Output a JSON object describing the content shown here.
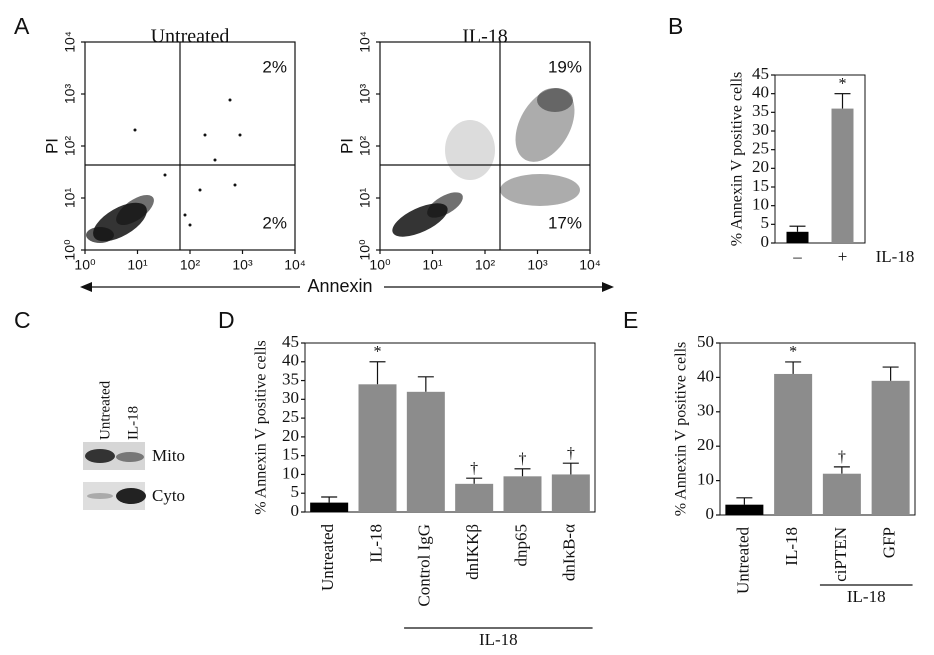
{
  "chart_data": [
    {
      "type": "flow",
      "panel": "A",
      "title": "Untreated",
      "xlabel": "Annexin",
      "ylabel": "PI",
      "log": true,
      "xlim": [
        1,
        10000
      ],
      "ylim": [
        1,
        10000
      ],
      "xticks": [
        {
          "value": 1,
          "label": "10⁰"
        },
        {
          "value": 10,
          "label": "10¹"
        },
        {
          "value": 100,
          "label": "10²"
        },
        {
          "value": 1000,
          "label": "10³"
        },
        {
          "value": 10000,
          "label": "10⁴"
        }
      ],
      "yticks": [
        {
          "value": 1,
          "label": "10⁰"
        },
        {
          "value": 10,
          "label": "10¹"
        },
        {
          "value": 100,
          "label": "10²"
        },
        {
          "value": 1000,
          "label": "10³"
        },
        {
          "value": 10000,
          "label": "10⁴"
        }
      ],
      "quadrants": {
        "values": [
          2,
          2
        ],
        "value_labels": [
          "2%",
          "2%"
        ]
      }
    },
    {
      "type": "flow",
      "title": "IL-18",
      "ylabel": "PI",
      "log": true,
      "xlim": [
        1,
        10000
      ],
      "ylim": [
        1,
        10000
      ],
      "xticks": [
        {
          "value": 1,
          "label": "10⁰"
        },
        {
          "value": 10,
          "label": "10¹"
        },
        {
          "value": 100,
          "label": "10²"
        },
        {
          "value": 1000,
          "label": "10³"
        },
        {
          "value": 10000,
          "label": "10⁴"
        }
      ],
      "yticks": [
        {
          "value": 1,
          "label": "10⁰"
        },
        {
          "value": 10,
          "label": "10¹"
        },
        {
          "value": 100,
          "label": "10²"
        },
        {
          "value": 1000,
          "label": "10³"
        },
        {
          "value": 10000,
          "label": "10⁴"
        }
      ],
      "quadrants": {
        "values": [
          19,
          17
        ],
        "value_labels": [
          "19%",
          "17%"
        ]
      }
    },
    {
      "type": "bar",
      "panel": "B",
      "ylabel": "% Annexin V positive cells",
      "xlabel": "IL-18",
      "categories": [
        "–",
        "+"
      ],
      "values": [
        3,
        36
      ],
      "errors": [
        1.5,
        4
      ],
      "colors": [
        "#000000",
        "#8c8c8c"
      ],
      "significance": [
        null,
        "*"
      ],
      "ylim": [
        0,
        45
      ],
      "yticks": [
        0,
        5,
        10,
        15,
        20,
        25,
        30,
        35,
        40,
        45
      ]
    },
    {
      "type": "bar",
      "panel": "D",
      "ylabel": "% Annexin V positive cells",
      "group_label": "IL-18",
      "categories": [
        "Untreated",
        "IL-18",
        "Control IgG",
        "dnIKKβ",
        "dnp65",
        "dnIκB-α"
      ],
      "values": [
        2.5,
        34,
        32,
        7.5,
        9.5,
        10
      ],
      "errors": [
        1.5,
        6,
        4,
        1.5,
        2,
        3
      ],
      "colors": [
        "#000000",
        "#8c8c8c",
        "#8c8c8c",
        "#8c8c8c",
        "#8c8c8c",
        "#8c8c8c"
      ],
      "significance": [
        null,
        "*",
        null,
        "†",
        "†",
        "†"
      ],
      "ylim": [
        0,
        45
      ],
      "yticks": [
        0,
        5,
        10,
        15,
        20,
        25,
        30,
        35,
        40,
        45
      ]
    },
    {
      "type": "bar",
      "panel": "E",
      "ylabel": "% Annexin V positive cells",
      "group_label": "IL-18",
      "categories": [
        "Untreated",
        "IL-18",
        "ciPTEN",
        "GFP"
      ],
      "values": [
        3,
        41,
        12,
        39
      ],
      "errors": [
        2,
        3.5,
        2,
        4
      ],
      "colors": [
        "#000000",
        "#8c8c8c",
        "#8c8c8c",
        "#8c8c8c"
      ],
      "significance": [
        null,
        "*",
        "†",
        null
      ],
      "ylim": [
        0,
        50
      ],
      "yticks": [
        0,
        10,
        20,
        30,
        40,
        50
      ]
    }
  ],
  "blot": {
    "panel": "C",
    "lanes": [
      "Untreated",
      "IL-18"
    ],
    "rows": [
      "Mito",
      "Cyto"
    ]
  }
}
